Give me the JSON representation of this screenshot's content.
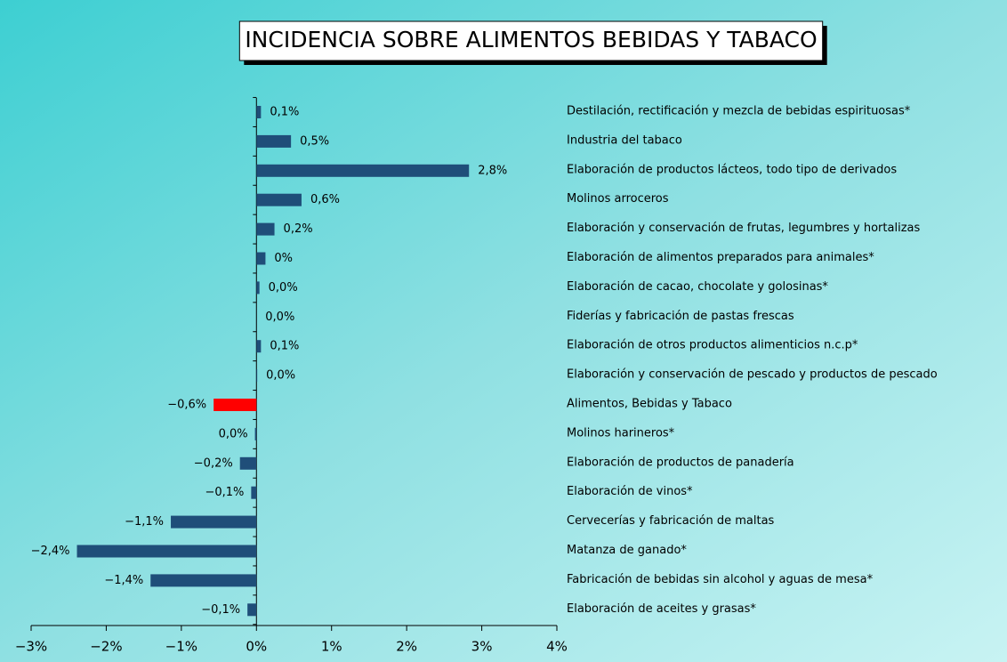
{
  "chart_data": {
    "type": "barh",
    "title": "INCIDENCIA SOBRE ALIMENTOS BEBIDAS Y TABACO",
    "categories": [
      "Destilación, rectificación y mezcla de bebidas espirituosas*",
      "Industria del tabaco",
      "Elaboración de productos lácteos, todo tipo de derivados",
      "Molinos arroceros",
      "Elaboración y conservación de frutas, legumbres y hortalizas",
      "Elaboración de alimentos preparados para animales*",
      "Elaboración de cacao, chocolate y golosinas*",
      "Fiderías y fabricación de pastas frescas",
      "Elaboración de otros productos alimenticios n.c.p*",
      "Elaboración y conservación de pescado y productos de pescado",
      "Alimentos, Bebidas y Tabaco",
      "Molinos harineros*",
      "Elaboración de productos de panadería",
      "Elaboración de vinos*",
      "Cervecerías y fabricación de maltas",
      "Matanza de ganado*",
      "Fabricación de bebidas sin alcohol y aguas de mesa*",
      "Elaboración de aceites y grasas*"
    ],
    "values": [
      0.06,
      0.46,
      2.83,
      0.6,
      0.24,
      0.12,
      0.04,
      0,
      0.06,
      0.01,
      -0.57,
      -0.02,
      -0.22,
      -0.07,
      -1.14,
      -2.39,
      -1.41,
      -0.12
    ],
    "value_labels": [
      "0,1%",
      "0,5%",
      "2,8%",
      "0,6%",
      "0,2%",
      "0%",
      "0,0%",
      "0,0%",
      "0,1%",
      "0,0%",
      "−0,6%",
      "0,0%",
      "−0,2%",
      "−0,1%",
      "−1,1%",
      "−2,4%",
      "−1,4%",
      "−0,1%"
    ],
    "colors": [
      "#1f4e79",
      "#1f4e79",
      "#1f4e79",
      "#1f4e79",
      "#1f4e79",
      "#1f4e79",
      "#1f4e79",
      "#1f4e79",
      "#1f4e79",
      "#1f4e79",
      "#ff0000",
      "#1f4e79",
      "#1f4e79",
      "#1f4e79",
      "#1f4e79",
      "#1f4e79",
      "#1f4e79",
      "#1f4e79"
    ],
    "xlim": [
      -3,
      4
    ],
    "xticks": [
      {
        "value": -3,
        "label": "−3%"
      },
      {
        "value": -2,
        "label": "−2%"
      },
      {
        "value": -1,
        "label": "−1%"
      },
      {
        "value": 0,
        "label": "0%"
      },
      {
        "value": 1,
        "label": "1%"
      },
      {
        "value": 2,
        "label": "2%"
      },
      {
        "value": 3,
        "label": "3%"
      },
      {
        "value": 4,
        "label": "4%"
      }
    ]
  }
}
